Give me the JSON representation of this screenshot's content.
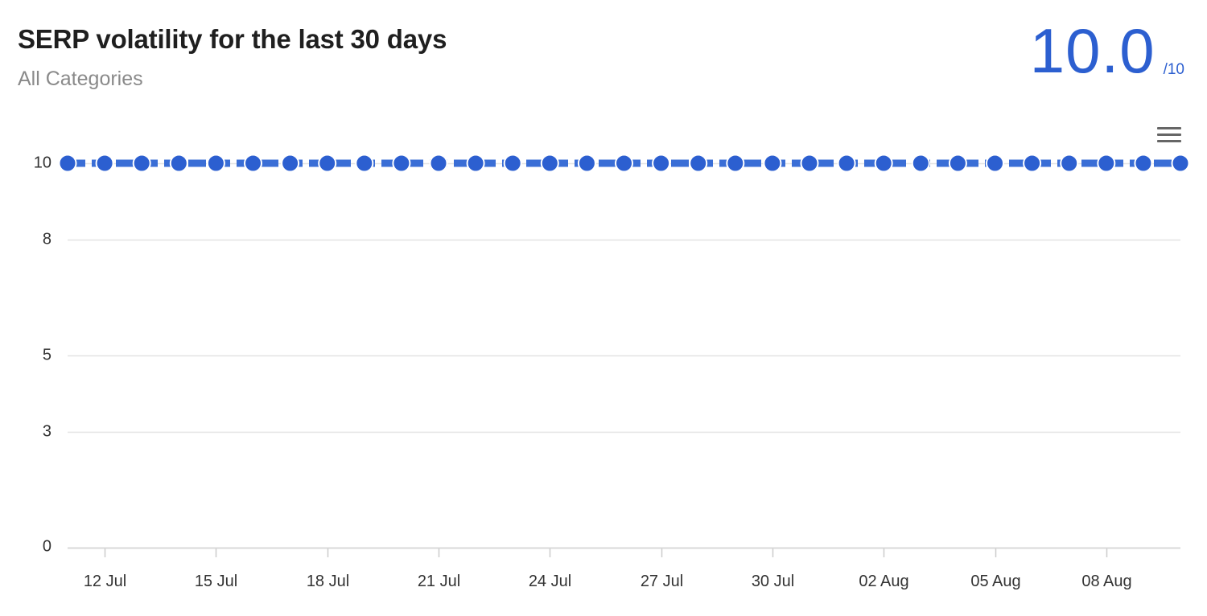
{
  "header": {
    "title": "SERP volatility for the last 30 days",
    "subtitle": "All Categories",
    "score": "10.0",
    "score_max": "/10"
  },
  "menu": {
    "icon": "hamburger-menu-icon"
  },
  "colors": {
    "accent": "#2c5fd0",
    "line": "#3a6ed6",
    "grid": "#e3e3e3",
    "title": "#1f1f1f",
    "subtitle": "#8a8a8a"
  },
  "chart_data": {
    "type": "line",
    "title": "SERP volatility for the last 30 days",
    "subtitle": "All Categories",
    "xlabel": "",
    "ylabel": "",
    "ylim": [
      0,
      10
    ],
    "y_ticks": [
      "0",
      "3",
      "5",
      "8",
      "10"
    ],
    "x_ticks": [
      "12 Jul",
      "15 Jul",
      "18 Jul",
      "21 Jul",
      "24 Jul",
      "27 Jul",
      "30 Jul",
      "02 Aug",
      "05 Aug",
      "08 Aug"
    ],
    "grid": true,
    "legend": "none",
    "line_style": "dashed",
    "series": [
      {
        "x": [
          "11 Jul",
          "12 Jul",
          "13 Jul",
          "14 Jul",
          "15 Jul",
          "16 Jul",
          "17 Jul",
          "18 Jul",
          "19 Jul",
          "20 Jul",
          "21 Jul",
          "22 Jul",
          "23 Jul",
          "24 Jul",
          "25 Jul",
          "26 Jul",
          "27 Jul",
          "28 Jul",
          "29 Jul",
          "30 Jul",
          "31 Jul",
          "01 Aug",
          "02 Aug",
          "03 Aug",
          "04 Aug",
          "05 Aug",
          "06 Aug",
          "07 Aug",
          "08 Aug",
          "09 Aug",
          "10 Aug"
        ],
        "values": [
          10,
          10,
          10,
          10,
          10,
          10,
          10,
          10,
          10,
          10,
          10,
          10,
          10,
          10,
          10,
          10,
          10,
          10,
          10,
          10,
          10,
          10,
          10,
          10,
          10,
          10,
          10,
          10,
          10,
          10,
          10
        ]
      }
    ]
  }
}
